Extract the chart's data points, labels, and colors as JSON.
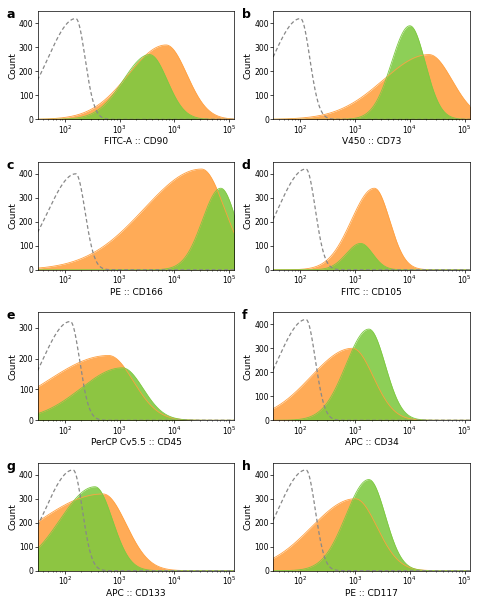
{
  "panels": [
    {
      "label": "a",
      "xlabel": "FITC-A :: CD90",
      "ylim": [
        0,
        450
      ],
      "yticks": [
        0,
        100,
        200,
        300,
        400
      ],
      "iso": [
        2.2,
        0.17,
        420,
        3.0
      ],
      "orange": [
        3.85,
        0.38,
        310,
        1.8
      ],
      "green": [
        3.55,
        0.32,
        270,
        1.5
      ]
    },
    {
      "label": "b",
      "xlabel": "V450 :: CD73",
      "ylim": [
        0,
        450
      ],
      "yticks": [
        0,
        100,
        200,
        300,
        400
      ],
      "iso": [
        2.0,
        0.17,
        420,
        3.0
      ],
      "orange": [
        4.35,
        0.42,
        270,
        2.0
      ],
      "green": [
        4.0,
        0.28,
        390,
        1.2
      ]
    },
    {
      "label": "c",
      "xlabel": "PE :: CD166",
      "ylim": [
        0,
        450
      ],
      "yticks": [
        0,
        100,
        200,
        300,
        400
      ],
      "iso": [
        2.2,
        0.17,
        400,
        3.0
      ],
      "orange": [
        4.5,
        0.42,
        420,
        2.5
      ],
      "green": [
        4.85,
        0.28,
        340,
        1.2
      ]
    },
    {
      "label": "d",
      "xlabel": "FITC :: CD105",
      "ylim": [
        0,
        450
      ],
      "yticks": [
        0,
        100,
        200,
        300,
        400
      ],
      "iso": [
        2.1,
        0.17,
        420,
        3.0
      ],
      "orange": [
        3.35,
        0.28,
        340,
        1.5
      ],
      "green": [
        3.1,
        0.22,
        110,
        1.2
      ]
    },
    {
      "label": "e",
      "xlabel": "PerCP Cv5.5 :: CD45",
      "ylim": [
        0,
        350
      ],
      "yticks": [
        0,
        100,
        200,
        300
      ],
      "iso": [
        2.1,
        0.17,
        320,
        3.0
      ],
      "orange": [
        2.8,
        0.45,
        210,
        2.5
      ],
      "green": [
        3.05,
        0.38,
        170,
        2.0
      ]
    },
    {
      "label": "f",
      "xlabel": "APC :: CD34",
      "ylim": [
        0,
        450
      ],
      "yticks": [
        0,
        100,
        200,
        300,
        400
      ],
      "iso": [
        2.1,
        0.17,
        420,
        3.0
      ],
      "orange": [
        2.95,
        0.38,
        300,
        2.0
      ],
      "green": [
        3.25,
        0.3,
        380,
        1.4
      ]
    },
    {
      "label": "g",
      "xlabel": "APC :: CD133",
      "ylim": [
        0,
        450
      ],
      "yticks": [
        0,
        100,
        200,
        300,
        400
      ],
      "iso": [
        2.15,
        0.17,
        420,
        3.0
      ],
      "orange": [
        2.7,
        0.42,
        320,
        3.0
      ],
      "green": [
        2.55,
        0.32,
        350,
        2.0
      ]
    },
    {
      "label": "h",
      "xlabel": "PE :: CD117",
      "ylim": [
        0,
        450
      ],
      "yticks": [
        0,
        100,
        200,
        300,
        400
      ],
      "iso": [
        2.1,
        0.17,
        420,
        3.0
      ],
      "orange": [
        3.0,
        0.4,
        300,
        2.0
      ],
      "green": [
        3.25,
        0.3,
        380,
        1.4
      ]
    }
  ],
  "orange_color": "#FFA040",
  "green_color": "#7DC940",
  "iso_color": "#888888",
  "fig_bg": "#ffffff",
  "xlabel_fontsize": 6.5,
  "ylabel_fontsize": 6.5,
  "tick_fontsize": 5.5,
  "label_fontsize": 9
}
